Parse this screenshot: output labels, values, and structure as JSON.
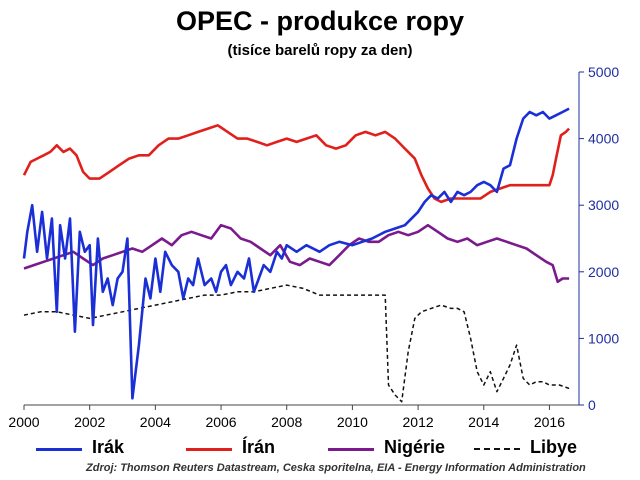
{
  "chart_data": {
    "type": "line",
    "title": "OPEC - produkce ropy",
    "subtitle": "(tisíce barelů ropy za den)",
    "source": "Zdroj: Thomson Reuters Datastream, Ceska sporitelna, EIA - Energy Information Administration",
    "xlim": [
      2000,
      2016.9
    ],
    "ylim": [
      0,
      5000
    ],
    "x_ticks": [
      "2000",
      "2002",
      "2004",
      "2006",
      "2008",
      "2010",
      "2012",
      "2014",
      "2016"
    ],
    "y_ticks": [
      "0",
      "1000",
      "2000",
      "3000",
      "4000",
      "5000"
    ],
    "y_axis_side": "right",
    "y_tick_color": "#1f2fa0",
    "grid": false,
    "legend_position": "bottom",
    "series": [
      {
        "name": "Irák",
        "color": "#1a2fd6",
        "style": "solid",
        "x": [
          2000.0,
          2000.1,
          2000.25,
          2000.4,
          2000.55,
          2000.7,
          2000.85,
          2001.0,
          2001.1,
          2001.25,
          2001.4,
          2001.55,
          2001.7,
          2001.85,
          2002.0,
          2002.1,
          2002.25,
          2002.4,
          2002.55,
          2002.7,
          2002.85,
          2003.0,
          2003.15,
          2003.3,
          2003.5,
          2003.7,
          2003.85,
          2004.0,
          2004.15,
          2004.3,
          2004.5,
          2004.7,
          2004.85,
          2005.0,
          2005.15,
          2005.3,
          2005.5,
          2005.7,
          2005.85,
          2006.0,
          2006.15,
          2006.3,
          2006.5,
          2006.7,
          2006.85,
          2007.0,
          2007.15,
          2007.3,
          2007.5,
          2007.7,
          2007.85,
          2008.0,
          2008.3,
          2008.6,
          2009.0,
          2009.3,
          2009.6,
          2010.0,
          2010.3,
          2010.6,
          2011.0,
          2011.3,
          2011.6,
          2012.0,
          2012.2,
          2012.4,
          2012.6,
          2012.8,
          2013.0,
          2013.2,
          2013.4,
          2013.6,
          2013.8,
          2014.0,
          2014.2,
          2014.4,
          2014.6,
          2014.8,
          2015.0,
          2015.2,
          2015.4,
          2015.6,
          2015.8,
          2016.0,
          2016.2,
          2016.4,
          2016.6
        ],
        "values": [
          2200,
          2600,
          3000,
          2300,
          2900,
          2200,
          2800,
          1400,
          2700,
          2200,
          2800,
          1100,
          2600,
          2300,
          2400,
          1200,
          2500,
          1700,
          1900,
          1500,
          1900,
          2000,
          2500,
          100,
          900,
          1900,
          1600,
          2200,
          1700,
          2300,
          2100,
          2000,
          1600,
          1900,
          1800,
          2200,
          1800,
          1900,
          1700,
          2000,
          2100,
          1800,
          2000,
          1900,
          2200,
          1700,
          1900,
          2100,
          2000,
          2300,
          2200,
          2400,
          2300,
          2400,
          2300,
          2400,
          2450,
          2400,
          2450,
          2500,
          2600,
          2650,
          2700,
          2900,
          3050,
          3150,
          3100,
          3200,
          3050,
          3200,
          3150,
          3200,
          3300,
          3350,
          3300,
          3200,
          3550,
          3600,
          4000,
          4300,
          4400,
          4350,
          4400,
          4300,
          4350,
          4400,
          4450
        ]
      },
      {
        "name": "Írán",
        "color": "#e0201c",
        "style": "solid",
        "x": [
          2000.0,
          2000.2,
          2000.4,
          2000.6,
          2000.8,
          2001.0,
          2001.2,
          2001.4,
          2001.6,
          2001.8,
          2002.0,
          2002.3,
          2002.6,
          2002.9,
          2003.2,
          2003.5,
          2003.8,
          2004.1,
          2004.4,
          2004.7,
          2005.0,
          2005.3,
          2005.6,
          2005.9,
          2006.2,
          2006.5,
          2006.8,
          2007.1,
          2007.4,
          2007.7,
          2008.0,
          2008.3,
          2008.6,
          2008.9,
          2009.2,
          2009.5,
          2009.8,
          2010.1,
          2010.4,
          2010.7,
          2011.0,
          2011.3,
          2011.6,
          2011.9,
          2012.1,
          2012.3,
          2012.5,
          2012.7,
          2013.0,
          2013.3,
          2013.6,
          2013.9,
          2014.2,
          2014.5,
          2014.8,
          2015.1,
          2015.4,
          2015.7,
          2016.0,
          2016.1,
          2016.2,
          2016.35,
          2016.5,
          2016.6
        ],
        "values": [
          3450,
          3650,
          3700,
          3750,
          3800,
          3900,
          3800,
          3850,
          3750,
          3500,
          3400,
          3400,
          3500,
          3600,
          3700,
          3750,
          3750,
          3900,
          4000,
          4000,
          4050,
          4100,
          4150,
          4200,
          4100,
          4000,
          4000,
          3950,
          3900,
          3950,
          4000,
          3950,
          4000,
          4050,
          3900,
          3850,
          3900,
          4050,
          4100,
          4050,
          4100,
          4000,
          3850,
          3700,
          3450,
          3250,
          3100,
          3050,
          3100,
          3100,
          3100,
          3100,
          3200,
          3250,
          3300,
          3300,
          3300,
          3300,
          3300,
          3450,
          3700,
          4050,
          4100,
          4150
        ]
      },
      {
        "name": "Nigérie",
        "color": "#7a1a8c",
        "style": "solid",
        "x": [
          2000.0,
          2000.3,
          2000.6,
          2000.9,
          2001.2,
          2001.5,
          2001.8,
          2002.1,
          2002.4,
          2002.7,
          2003.0,
          2003.3,
          2003.6,
          2003.9,
          2004.2,
          2004.5,
          2004.8,
          2005.1,
          2005.4,
          2005.7,
          2006.0,
          2006.3,
          2006.6,
          2006.9,
          2007.2,
          2007.5,
          2007.8,
          2008.1,
          2008.4,
          2008.7,
          2009.0,
          2009.3,
          2009.6,
          2009.9,
          2010.2,
          2010.5,
          2010.8,
          2011.1,
          2011.4,
          2011.7,
          2012.0,
          2012.3,
          2012.6,
          2012.9,
          2013.2,
          2013.5,
          2013.8,
          2014.1,
          2014.4,
          2014.7,
          2015.0,
          2015.3,
          2015.6,
          2015.9,
          2016.1,
          2016.25,
          2016.4,
          2016.6
        ],
        "values": [
          2050,
          2100,
          2150,
          2200,
          2250,
          2300,
          2200,
          2100,
          2200,
          2250,
          2300,
          2350,
          2300,
          2400,
          2500,
          2400,
          2550,
          2600,
          2550,
          2500,
          2700,
          2650,
          2500,
          2450,
          2350,
          2250,
          2400,
          2150,
          2100,
          2200,
          2150,
          2100,
          2250,
          2400,
          2500,
          2450,
          2450,
          2550,
          2600,
          2550,
          2600,
          2700,
          2600,
          2500,
          2450,
          2500,
          2400,
          2450,
          2500,
          2450,
          2400,
          2350,
          2250,
          2150,
          2100,
          1850,
          1900,
          1900
        ]
      },
      {
        "name": "Libye",
        "color": "#111111",
        "style": "dashed",
        "x": [
          2000.0,
          2000.5,
          2001.0,
          2001.5,
          2002.0,
          2002.5,
          2003.0,
          2003.5,
          2004.0,
          2004.5,
          2005.0,
          2005.5,
          2006.0,
          2006.5,
          2007.0,
          2007.5,
          2008.0,
          2008.5,
          2009.0,
          2009.5,
          2010.0,
          2010.5,
          2011.0,
          2011.1,
          2011.3,
          2011.5,
          2011.7,
          2011.9,
          2012.1,
          2012.4,
          2012.7,
          2013.0,
          2013.2,
          2013.4,
          2013.6,
          2013.8,
          2014.0,
          2014.2,
          2014.4,
          2014.6,
          2014.8,
          2015.0,
          2015.2,
          2015.4,
          2015.6,
          2015.8,
          2016.0,
          2016.3,
          2016.6
        ],
        "values": [
          1350,
          1400,
          1400,
          1350,
          1300,
          1350,
          1400,
          1450,
          1500,
          1550,
          1600,
          1650,
          1650,
          1700,
          1700,
          1750,
          1800,
          1750,
          1650,
          1650,
          1650,
          1650,
          1650,
          300,
          150,
          50,
          800,
          1300,
          1400,
          1450,
          1500,
          1450,
          1450,
          1400,
          1000,
          500,
          300,
          500,
          200,
          400,
          600,
          900,
          400,
          300,
          350,
          350,
          300,
          300,
          250
        ]
      }
    ]
  }
}
